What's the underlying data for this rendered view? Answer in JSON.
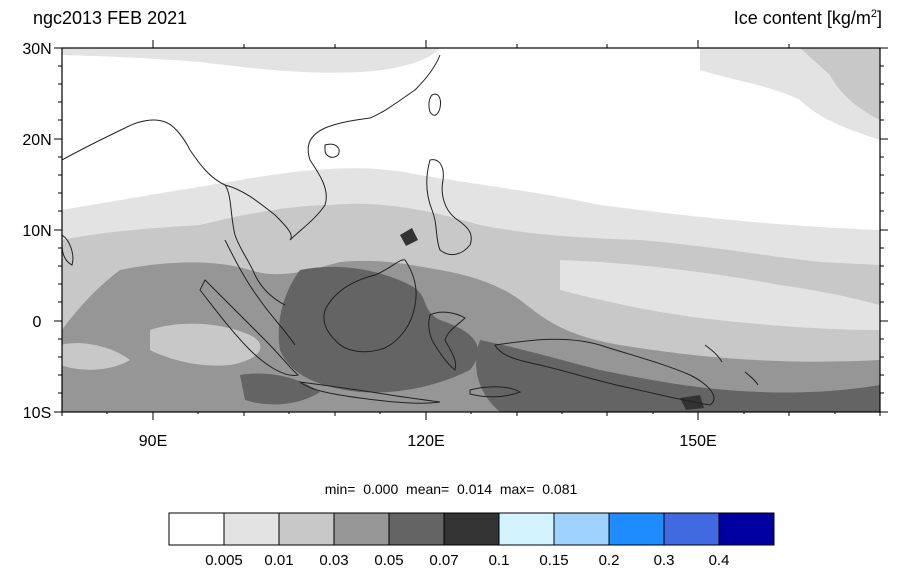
{
  "header": {
    "left_title": "ngc2013 FEB 2021",
    "right_title_main": "Ice content  [kg/m",
    "right_title_sup": "2",
    "right_title_end": "]"
  },
  "axes": {
    "lat_labels": [
      "30N",
      "20N",
      "10N",
      "0",
      "10S"
    ],
    "lon_labels": [
      "90E",
      "120E",
      "150E"
    ]
  },
  "map_extent": {
    "lon_min": 80,
    "lon_max": 170,
    "lat_min": -10,
    "lat_max": 30
  },
  "stats": {
    "min_label": "min=",
    "min_value": "0.000",
    "mean_label": "mean=",
    "mean_value": "0.014",
    "max_label": "max=",
    "max_value": "0.081"
  },
  "colorbar": {
    "colors": [
      "#ffffff",
      "#e3e3e3",
      "#c8c8c8",
      "#969696",
      "#646464",
      "#333333",
      "#d2f3ff",
      "#a0d2ff",
      "#1e8cff",
      "#4169e1",
      "#0000a0"
    ],
    "labels": [
      "0.005",
      "0.01",
      "0.03",
      "0.05",
      "0.07",
      "0.1",
      "0.15",
      "0.2",
      "0.3",
      "0.4"
    ]
  }
}
